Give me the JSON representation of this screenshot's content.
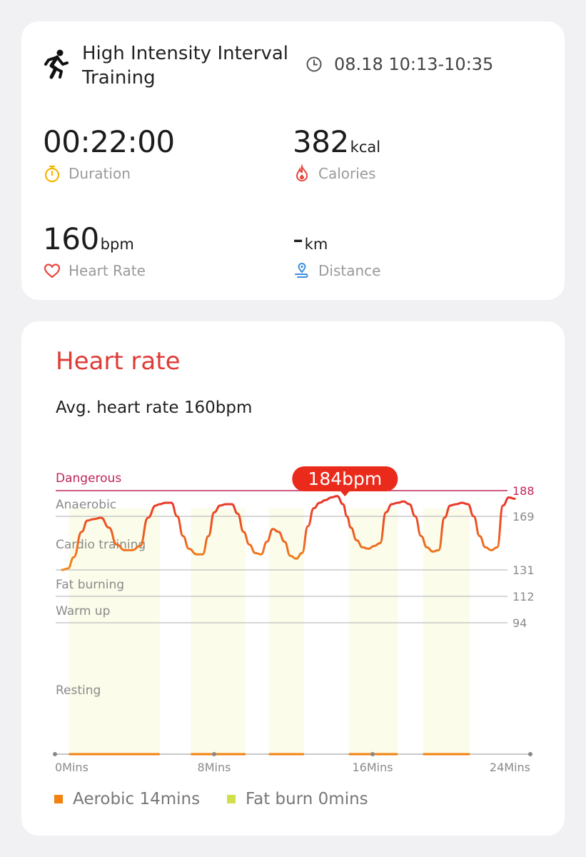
{
  "activity": {
    "name": "High Intensity Interval Training",
    "time_range": "08.18 10:13-10:35"
  },
  "metrics": {
    "duration": {
      "value": "00:22:00",
      "label": "Duration"
    },
    "calories": {
      "value": "382",
      "unit": "kcal",
      "label": "Calories"
    },
    "heart_rate": {
      "value": "160",
      "unit": "bpm",
      "label": "Heart Rate"
    },
    "distance": {
      "value": "-",
      "unit": "km",
      "label": "Distance"
    }
  },
  "heart_card": {
    "title": "Heart rate",
    "avg_text": "Avg. heart rate 160bpm"
  },
  "legend": {
    "aerobic": "Aerobic 14mins",
    "fat_burn": "Fat burn 0mins"
  },
  "colors": {
    "accent_red": "#dd3b36",
    "dangerous": "#c0245a",
    "line_low": "#f08a1c",
    "line_high": "#e8262a",
    "band": "#fbfce9",
    "aerobic": "#f2810f",
    "fat_burn": "#cfe04a"
  },
  "chart_data": {
    "type": "line",
    "xlabel": "",
    "ylabel": "",
    "x_ticks": [
      "0Mins",
      "8Mins",
      "16Mins",
      "24Mins"
    ],
    "xlim": [
      0,
      24
    ],
    "zones": [
      {
        "name": "Dangerous",
        "value": 188
      },
      {
        "name": "Anaerobic",
        "value": 169
      },
      {
        "name": "Cardio training",
        "value": 131
      },
      {
        "name": "Fat burning",
        "value": 112
      },
      {
        "name": "Warm up",
        "value": 94
      },
      {
        "name": "Resting",
        "value": null
      }
    ],
    "peak_label": "184bpm",
    "peak": {
      "x": 14.5,
      "y": 184
    },
    "series": [
      {
        "x": [
          0.0,
          0.3,
          0.6,
          1.0,
          1.3,
          1.6,
          2.0,
          2.4,
          2.8,
          3.2,
          3.6,
          4.0,
          4.4,
          4.8,
          5.0,
          5.3,
          5.6,
          5.9,
          6.2,
          6.5,
          6.9,
          7.2,
          7.5,
          7.8,
          8.1,
          8.4,
          8.7,
          9.0,
          9.3,
          9.6,
          9.9,
          10.2,
          10.5,
          10.8,
          11.1,
          11.4,
          11.7,
          12.0,
          12.3,
          12.6,
          12.9,
          13.2,
          13.5,
          13.8,
          14.1,
          14.4,
          14.6,
          14.8,
          15.1,
          15.4,
          15.7,
          16.0,
          16.3,
          16.6,
          16.9,
          17.2,
          17.5,
          17.8,
          18.1,
          18.4,
          18.7,
          19.0,
          19.3,
          19.6,
          19.9,
          20.2,
          20.5,
          20.8,
          21.1,
          21.4,
          21.7,
          22.0,
          22.3,
          22.6,
          22.9,
          23.2
        ],
        "y": [
          131,
          132,
          140,
          158,
          166,
          167,
          168,
          161,
          149,
          145,
          145,
          148,
          168,
          177,
          178,
          179,
          179,
          169,
          155,
          146,
          142,
          142,
          155,
          172,
          177,
          178,
          178,
          171,
          158,
          149,
          143,
          142,
          151,
          160,
          158,
          151,
          141,
          139,
          143,
          162,
          175,
          179,
          181,
          183,
          184,
          178,
          169,
          161,
          152,
          147,
          146,
          148,
          150,
          172,
          178,
          179,
          180,
          178,
          169,
          155,
          147,
          144,
          145,
          168,
          177,
          178,
          179,
          178,
          169,
          155,
          147,
          145,
          147,
          177,
          183,
          182
        ]
      }
    ],
    "aerobic_intervals": [
      [
        0.35,
        5.0
      ],
      [
        6.6,
        9.4
      ],
      [
        10.6,
        12.4
      ],
      [
        14.7,
        17.2
      ],
      [
        18.5,
        20.9
      ]
    ]
  }
}
